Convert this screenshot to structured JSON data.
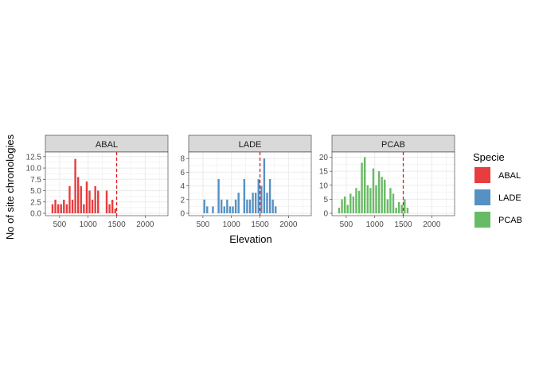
{
  "chart_data": {
    "type": "bar",
    "xlabel": "Elevation",
    "ylabel": "No of site chronologies",
    "reference_line": {
      "x": 1500,
      "style": "dashed",
      "color": "#e41a1c"
    },
    "legend": {
      "title": "Specie",
      "placement": "right",
      "items": [
        {
          "label": "ABAL",
          "color": "#e41a1c"
        },
        {
          "label": "LADE",
          "color": "#377eb8"
        },
        {
          "label": "PCAB",
          "color": "#4daf4a"
        }
      ]
    },
    "bin_width": 50,
    "xlim": [
      250,
      2400
    ],
    "x_ticks": [
      500,
      1000,
      1500,
      2000
    ],
    "grid": true,
    "panels": [
      {
        "name": "ABAL",
        "color": "#e41a1c",
        "ylim": [
          0,
          13
        ],
        "y_ticks": [
          "0.0",
          "2.5",
          "5.0",
          "7.5",
          "10.0",
          "12.5"
        ],
        "y_tick_values": [
          0,
          2.5,
          5,
          7.5,
          10,
          12.5
        ],
        "bins": [
          {
            "x": 375,
            "y": 2
          },
          {
            "x": 425,
            "y": 3
          },
          {
            "x": 475,
            "y": 2
          },
          {
            "x": 525,
            "y": 2
          },
          {
            "x": 575,
            "y": 3
          },
          {
            "x": 625,
            "y": 2
          },
          {
            "x": 675,
            "y": 6
          },
          {
            "x": 725,
            "y": 3
          },
          {
            "x": 775,
            "y": 12
          },
          {
            "x": 825,
            "y": 8
          },
          {
            "x": 875,
            "y": 6
          },
          {
            "x": 925,
            "y": 2
          },
          {
            "x": 975,
            "y": 7
          },
          {
            "x": 1025,
            "y": 5
          },
          {
            "x": 1075,
            "y": 3
          },
          {
            "x": 1125,
            "y": 6
          },
          {
            "x": 1175,
            "y": 5
          },
          {
            "x": 1325,
            "y": 5
          },
          {
            "x": 1375,
            "y": 2
          },
          {
            "x": 1425,
            "y": 3
          },
          {
            "x": 1475,
            "y": 1
          }
        ]
      },
      {
        "name": "LADE",
        "color": "#377eb8",
        "ylim": [
          0,
          8.6
        ],
        "y_ticks": [
          "0",
          "2",
          "4",
          "6",
          "8"
        ],
        "y_tick_values": [
          0,
          2,
          4,
          6,
          8
        ],
        "bins": [
          {
            "x": 525,
            "y": 2
          },
          {
            "x": 575,
            "y": 1
          },
          {
            "x": 675,
            "y": 1
          },
          {
            "x": 775,
            "y": 5
          },
          {
            "x": 825,
            "y": 2
          },
          {
            "x": 875,
            "y": 1
          },
          {
            "x": 925,
            "y": 2
          },
          {
            "x": 975,
            "y": 1
          },
          {
            "x": 1025,
            "y": 1
          },
          {
            "x": 1075,
            "y": 2
          },
          {
            "x": 1125,
            "y": 3
          },
          {
            "x": 1225,
            "y": 5
          },
          {
            "x": 1275,
            "y": 2
          },
          {
            "x": 1325,
            "y": 2
          },
          {
            "x": 1375,
            "y": 3
          },
          {
            "x": 1425,
            "y": 3
          },
          {
            "x": 1475,
            "y": 5
          },
          {
            "x": 1525,
            "y": 4
          },
          {
            "x": 1575,
            "y": 8
          },
          {
            "x": 1625,
            "y": 3
          },
          {
            "x": 1675,
            "y": 5
          },
          {
            "x": 1725,
            "y": 2
          },
          {
            "x": 1775,
            "y": 1
          }
        ]
      },
      {
        "name": "PCAB",
        "color": "#4daf4a",
        "ylim": [
          0,
          21
        ],
        "y_ticks": [
          "0",
          "5",
          "10",
          "15",
          "20"
        ],
        "y_tick_values": [
          0,
          5,
          10,
          15,
          20
        ],
        "bins": [
          {
            "x": 375,
            "y": 2
          },
          {
            "x": 425,
            "y": 5
          },
          {
            "x": 475,
            "y": 6
          },
          {
            "x": 525,
            "y": 3
          },
          {
            "x": 575,
            "y": 7
          },
          {
            "x": 625,
            "y": 6
          },
          {
            "x": 675,
            "y": 9
          },
          {
            "x": 725,
            "y": 8
          },
          {
            "x": 775,
            "y": 18
          },
          {
            "x": 825,
            "y": 20
          },
          {
            "x": 875,
            "y": 10
          },
          {
            "x": 925,
            "y": 9
          },
          {
            "x": 975,
            "y": 16
          },
          {
            "x": 1025,
            "y": 10
          },
          {
            "x": 1075,
            "y": 15
          },
          {
            "x": 1125,
            "y": 13
          },
          {
            "x": 1175,
            "y": 12
          },
          {
            "x": 1225,
            "y": 5
          },
          {
            "x": 1275,
            "y": 9
          },
          {
            "x": 1325,
            "y": 7
          },
          {
            "x": 1375,
            "y": 2
          },
          {
            "x": 1425,
            "y": 4
          },
          {
            "x": 1475,
            "y": 3
          },
          {
            "x": 1525,
            "y": 5
          },
          {
            "x": 1575,
            "y": 2
          }
        ]
      }
    ]
  }
}
